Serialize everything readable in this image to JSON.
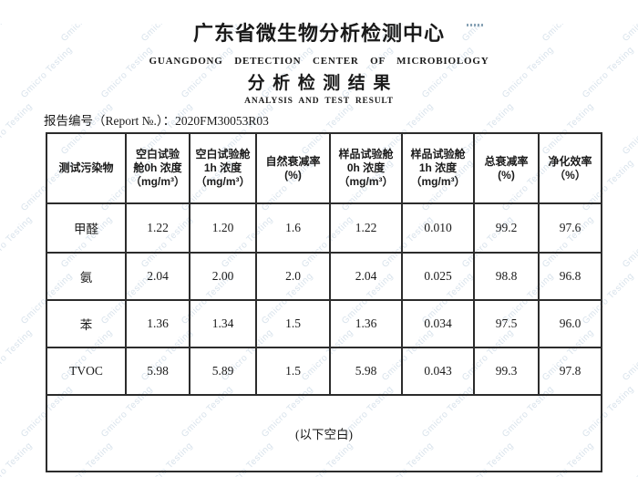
{
  "watermark": {
    "text": "Gmicro Testing",
    "color": "#d9e3ec"
  },
  "header": {
    "title": "广东省微生物分析检测中心",
    "title_en": "GUANGDONG DETECTION CENTER OF MICROBIOLOGY",
    "subtitle": "分析检测结果",
    "subtitle_en": "ANALYSIS AND TEST RESULT",
    "report_no_label": "报告编号（Report №.）：",
    "report_no": "2020FM30053R03"
  },
  "table": {
    "columns": [
      {
        "lines": [
          "测试污染物"
        ]
      },
      {
        "lines": [
          "空白试验",
          "舱0h 浓度",
          "（mg/m³）"
        ]
      },
      {
        "lines": [
          "空白试验舱",
          "1h 浓度",
          "（mg/m³）"
        ]
      },
      {
        "lines": [
          "自然衰减率",
          "(%)"
        ]
      },
      {
        "lines": [
          "样品试验舱",
          "0h 浓度",
          "（mg/m³）"
        ]
      },
      {
        "lines": [
          "样品试验舱",
          "1h 浓度",
          "（mg/m³）"
        ]
      },
      {
        "lines": [
          "总衰减率",
          "(%)"
        ]
      },
      {
        "lines": [
          "净化效率",
          "（%）"
        ]
      }
    ],
    "rows": [
      {
        "pollutant": "甲醛",
        "values": [
          "1.22",
          "1.20",
          "1.6",
          "1.22",
          "0.010",
          "99.2",
          "97.6"
        ]
      },
      {
        "pollutant": "氨",
        "values": [
          "2.04",
          "2.00",
          "2.0",
          "2.04",
          "0.025",
          "98.8",
          "96.8"
        ]
      },
      {
        "pollutant": "苯",
        "values": [
          "1.36",
          "1.34",
          "1.5",
          "1.36",
          "0.034",
          "97.5",
          "96.0"
        ]
      },
      {
        "pollutant": "TVOC",
        "values": [
          "5.98",
          "5.89",
          "1.5",
          "5.98",
          "0.043",
          "99.3",
          "97.8"
        ]
      }
    ],
    "footer": "(以下空白)"
  }
}
